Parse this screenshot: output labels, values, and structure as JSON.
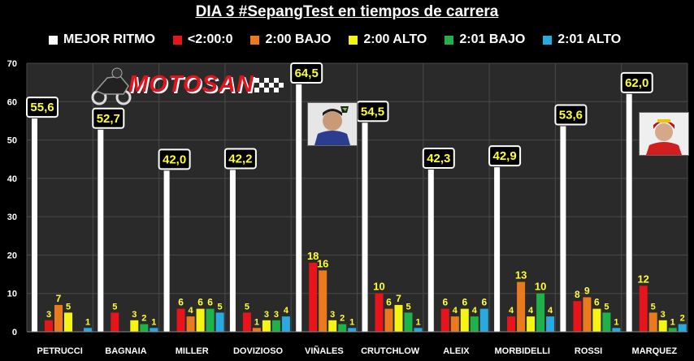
{
  "title": "DIA 3 #SepangTest en tiempos de carrera",
  "logo": {
    "text": "MOTOSAN"
  },
  "colors": {
    "background": "#000000",
    "plot_bg": "#2a2a2a",
    "grid": "#4a4a4a",
    "label_box_bg": "#000000",
    "label_box_border": "#ffffff",
    "label_text": "#ffff33"
  },
  "chart_data": {
    "type": "bar",
    "title": "DIA 3 #SepangTest en tiempos de carrera",
    "xlabel": "",
    "ylabel": "",
    "ylim": [
      0,
      70
    ],
    "yticks": [
      0,
      10,
      20,
      30,
      40,
      50,
      60,
      70
    ],
    "grid": true,
    "legend_position": "top",
    "categories": [
      "PETRUCCI",
      "BAGNAIA",
      "MILLER",
      "DOVIZIOSO",
      "VIÑALES",
      "CRUTCHLOW",
      "ALEIX",
      "MORBIDELLI",
      "ROSSI",
      "MARQUEZ"
    ],
    "series": [
      {
        "name": "MEJOR RITMO",
        "color": "#ffffff",
        "values": [
          55.6,
          52.7,
          42.0,
          42.2,
          64.5,
          54.5,
          42.3,
          42.9,
          53.6,
          62.0
        ],
        "labels": [
          "55,6",
          "52,7",
          "42,0",
          "42,2",
          "64,5",
          "54,5",
          "42,3",
          "42,9",
          "53,6",
          "62,0"
        ]
      },
      {
        "name": "<2:00:0",
        "color": "#e8141c",
        "values": [
          3,
          5,
          6,
          5,
          18,
          10,
          6,
          4,
          8,
          12
        ]
      },
      {
        "name": "2:00 BAJO",
        "color": "#ea7a1e",
        "values": [
          7,
          0,
          4,
          1,
          16,
          6,
          4,
          13,
          9,
          5
        ]
      },
      {
        "name": "2:00 ALTO",
        "color": "#f5f514",
        "values": [
          5,
          3,
          6,
          3,
          3,
          7,
          6,
          4,
          6,
          3
        ]
      },
      {
        "name": "2:01 BAJO",
        "color": "#1fb24a",
        "values": [
          0,
          2,
          6,
          3,
          2,
          5,
          4,
          10,
          5,
          1
        ]
      },
      {
        "name": "2:01 ALTO",
        "color": "#29a9e0",
        "values": [
          1,
          1,
          5,
          4,
          1,
          1,
          6,
          4,
          1,
          2
        ]
      }
    ],
    "photos": [
      "helmet-photo-vinales",
      "helmet-photo-marquez"
    ]
  }
}
